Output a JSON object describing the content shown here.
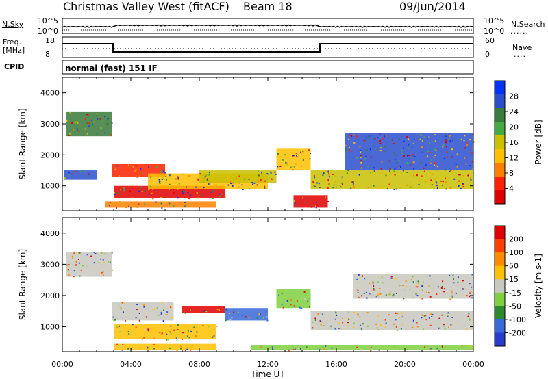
{
  "header": {
    "site": "Christmas Valley West (fitACF)",
    "beam": "Beam 18",
    "date": "09/Jun/2014"
  },
  "strip_labels": {
    "nsky": "N.Sky",
    "nsearch": "N.Search",
    "freq_top": "Freq.",
    "freq_unit": "[MHz]",
    "nave": "Nave",
    "cpid": "CPID",
    "cpid_value": "normal (fast) 151 IF",
    "noise_ticks": [
      "10^5",
      "10^0"
    ],
    "freq_ticks": [
      "18",
      "8"
    ],
    "nave_ticks": [
      "60",
      "0"
    ]
  },
  "colors": {
    "power": [
      "#0033ff",
      "#2b4fcc",
      "#3a7a3a",
      "#44aa44",
      "#c9c000",
      "#ffbf00",
      "#ff8000",
      "#ff2000",
      "#e00000"
    ],
    "velocity": [
      "#2a3ccc",
      "#3a6ad8",
      "#2f8a2f",
      "#7fd040",
      "#c8c8c0",
      "#ffc000",
      "#ff8a00",
      "#ff4000",
      "#e00000"
    ]
  },
  "chart_data": [
    {
      "type": "heatmap",
      "title": "",
      "quantity": "Power",
      "xlabel": "Time UT",
      "ylabel": "Slant Range [km]",
      "colorbar_label": "Power [dB]",
      "colorbar_ticks": [
        "28",
        "24",
        "20",
        "16",
        "12",
        "8",
        "4"
      ],
      "x_ticks": [
        "00:00",
        "04:00",
        "08:00",
        "12:00",
        "16:00",
        "20:00",
        "00:00"
      ],
      "y_ticks": [
        "4000",
        "3000",
        "2000",
        "1000"
      ],
      "xlim_hours": [
        0,
        24
      ],
      "ylim_km": [
        200,
        4500
      ],
      "echo_regions": [
        {
          "t_start": 0.2,
          "t_end": 2.9,
          "r_low": 2600,
          "r_high": 3400,
          "level": 2
        },
        {
          "t_start": 0.1,
          "t_end": 2.0,
          "r_low": 1200,
          "r_high": 1500,
          "level": 1
        },
        {
          "t_start": 2.9,
          "t_end": 6.0,
          "r_low": 1300,
          "r_high": 1700,
          "level": 7
        },
        {
          "t_start": 3.0,
          "t_end": 9.5,
          "r_low": 600,
          "r_high": 1000,
          "level": 8
        },
        {
          "t_start": 5.0,
          "t_end": 12.0,
          "r_low": 900,
          "r_high": 1400,
          "level": 5
        },
        {
          "t_start": 8.0,
          "t_end": 12.5,
          "r_low": 1100,
          "r_high": 1500,
          "level": 4
        },
        {
          "t_start": 12.5,
          "t_end": 14.5,
          "r_low": 1500,
          "r_high": 2200,
          "level": 5
        },
        {
          "t_start": 13.5,
          "t_end": 15.5,
          "r_low": 300,
          "r_high": 700,
          "level": 8
        },
        {
          "t_start": 14.5,
          "t_end": 24.0,
          "r_low": 900,
          "r_high": 1500,
          "level": 4
        },
        {
          "t_start": 16.5,
          "t_end": 24.0,
          "r_low": 1500,
          "r_high": 2700,
          "level": 1
        },
        {
          "t_start": 2.5,
          "t_end": 9.0,
          "r_low": 300,
          "r_high": 500,
          "level": 6
        }
      ]
    },
    {
      "type": "heatmap",
      "title": "",
      "quantity": "Velocity",
      "xlabel": "Time UT",
      "ylabel": "Slant Range [km]",
      "colorbar_label": "Velocity [m s-1]",
      "colorbar_ticks": [
        "200",
        "100",
        "50",
        "15",
        "-15",
        "-50",
        "-100",
        "-200"
      ],
      "x_ticks": [
        "00:00",
        "04:00",
        "08:00",
        "12:00",
        "16:00",
        "20:00",
        "00:00"
      ],
      "y_ticks": [
        "4000",
        "3000",
        "2000",
        "1000"
      ],
      "xlim_hours": [
        0,
        24
      ],
      "ylim_km": [
        200,
        4500
      ],
      "echo_regions": [
        {
          "t_start": 0.2,
          "t_end": 2.9,
          "r_low": 2600,
          "r_high": 3400,
          "level": 4
        },
        {
          "t_start": 2.9,
          "t_end": 6.5,
          "r_low": 1200,
          "r_high": 1800,
          "level": 4
        },
        {
          "t_start": 3.0,
          "t_end": 9.0,
          "r_low": 600,
          "r_high": 1100,
          "level": 5
        },
        {
          "t_start": 7.0,
          "t_end": 9.5,
          "r_low": 1450,
          "r_high": 1650,
          "level": 8
        },
        {
          "t_start": 9.5,
          "t_end": 12.0,
          "r_low": 1200,
          "r_high": 1600,
          "level": 1
        },
        {
          "t_start": 12.5,
          "t_end": 14.5,
          "r_low": 1600,
          "r_high": 2200,
          "level": 3
        },
        {
          "t_start": 14.5,
          "t_end": 24.0,
          "r_low": 900,
          "r_high": 1500,
          "level": 4
        },
        {
          "t_start": 17.0,
          "t_end": 24.0,
          "r_low": 1900,
          "r_high": 2700,
          "level": 4
        },
        {
          "t_start": 3.0,
          "t_end": 9.0,
          "r_low": 250,
          "r_high": 450,
          "level": 5
        },
        {
          "t_start": 11.0,
          "t_end": 24.0,
          "r_low": 250,
          "r_high": 400,
          "level": 3
        }
      ]
    }
  ]
}
